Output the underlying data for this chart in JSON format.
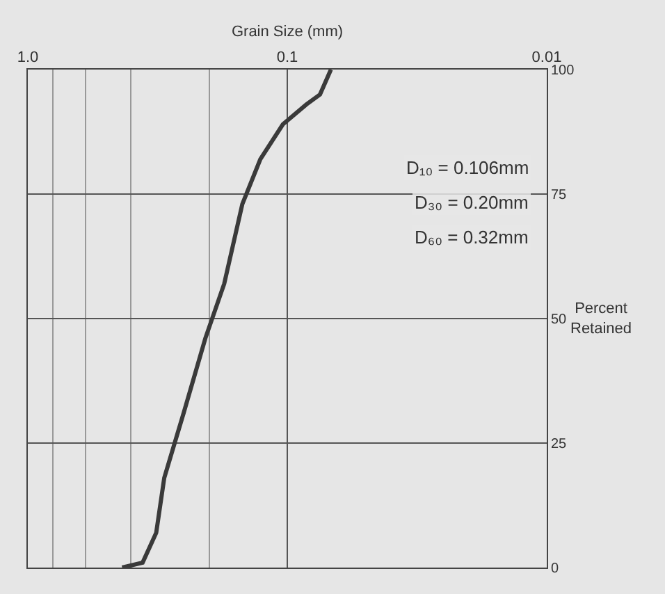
{
  "chart_data": {
    "type": "line",
    "xlabel": "Grain Size (mm)",
    "ylabel": "Percent Retained",
    "x": [
      0.433,
      0.361,
      0.32,
      0.298,
      0.251,
      0.207,
      0.175,
      0.149,
      0.127,
      0.104,
      0.0844,
      0.0748,
      0.0679
    ],
    "series": [
      {
        "color": "#3a3a3a",
        "values": [
          0,
          1,
          7,
          18,
          31,
          46,
          57,
          73,
          82,
          89,
          93,
          95,
          100
        ]
      }
    ],
    "log": "x",
    "xlim": [
      1.0,
      0.01
    ],
    "xticks": [
      {
        "value": 1.0,
        "label": "1.0"
      },
      0.1,
      0.01
    ],
    "ylim": [
      0,
      100
    ],
    "yticks": [
      0,
      25,
      50,
      75,
      100
    ],
    "grid": true,
    "marker": "none",
    "line_style": "solid",
    "annotations": [
      "D₁₀ = 0.106mm",
      "D₃₀ = 0.20mm",
      "D₆₀ = 0.32mm"
    ]
  }
}
